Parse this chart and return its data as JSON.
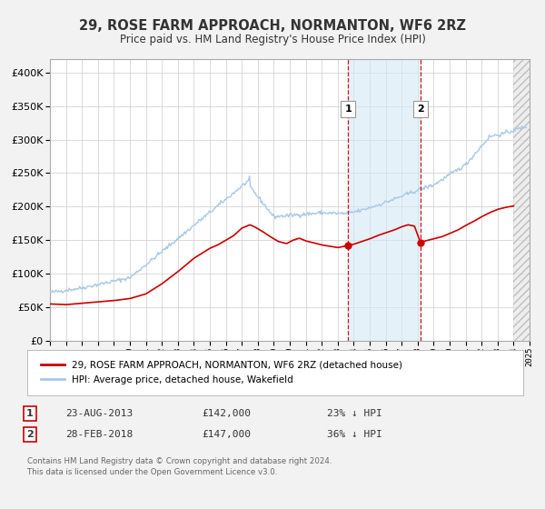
{
  "title": "29, ROSE FARM APPROACH, NORMANTON, WF6 2RZ",
  "subtitle": "Price paid vs. HM Land Registry's House Price Index (HPI)",
  "legend_property": "29, ROSE FARM APPROACH, NORMANTON, WF6 2RZ (detached house)",
  "legend_hpi": "HPI: Average price, detached house, Wakefield",
  "footnote1": "Contains HM Land Registry data © Crown copyright and database right 2024.",
  "footnote2": "This data is licensed under the Open Government Licence v3.0.",
  "property_color": "#cc0000",
  "hpi_color": "#a8c8e8",
  "sale1_date": "23-AUG-2013",
  "sale1_price": 142000,
  "sale1_pct": "23% ↓ HPI",
  "sale2_date": "28-FEB-2018",
  "sale2_price": 147000,
  "sale2_pct": "36% ↓ HPI",
  "sale1_x": 2013.64,
  "sale2_x": 2018.17,
  "ylim": [
    0,
    420000
  ],
  "xlim": [
    1995,
    2025
  ],
  "background_color": "#f2f2f2",
  "plot_bg": "#ffffff",
  "shaded_region": [
    2013.64,
    2018.17
  ],
  "hatch_start": 2024.0
}
